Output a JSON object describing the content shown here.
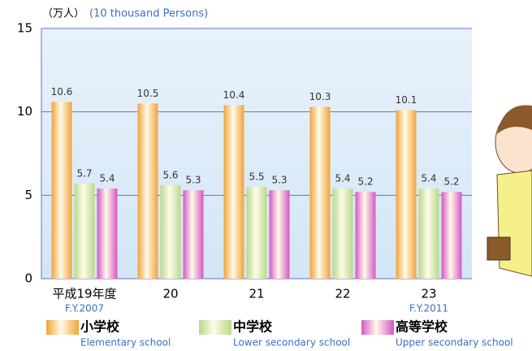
{
  "chart_data": {
    "type": "bar",
    "y_label": "（万人）",
    "y_label_en": "(10 thousand Persons)",
    "categories": [
      "平成19年度",
      "20",
      "21",
      "22",
      "23"
    ],
    "category_notes": [
      "F.Y.2007",
      null,
      null,
      null,
      "F.Y.2011"
    ],
    "series": [
      {
        "name": "小学校",
        "name_en": "Elementary school",
        "color": "#f2a23a",
        "values": [
          10.6,
          10.5,
          10.4,
          10.3,
          10.1
        ]
      },
      {
        "name": "中学校",
        "name_en": "Lower secondary school",
        "color": "#b9d98a",
        "values": [
          5.7,
          5.6,
          5.5,
          5.4,
          5.4
        ]
      },
      {
        "name": "高等学校",
        "name_en": "Upper secondary school",
        "color": "#d657c4",
        "values": [
          5.4,
          5.3,
          5.3,
          5.2,
          5.2
        ]
      }
    ],
    "ylim": [
      0,
      15
    ],
    "yticks": [
      0,
      5,
      10,
      15
    ],
    "grid": true
  }
}
